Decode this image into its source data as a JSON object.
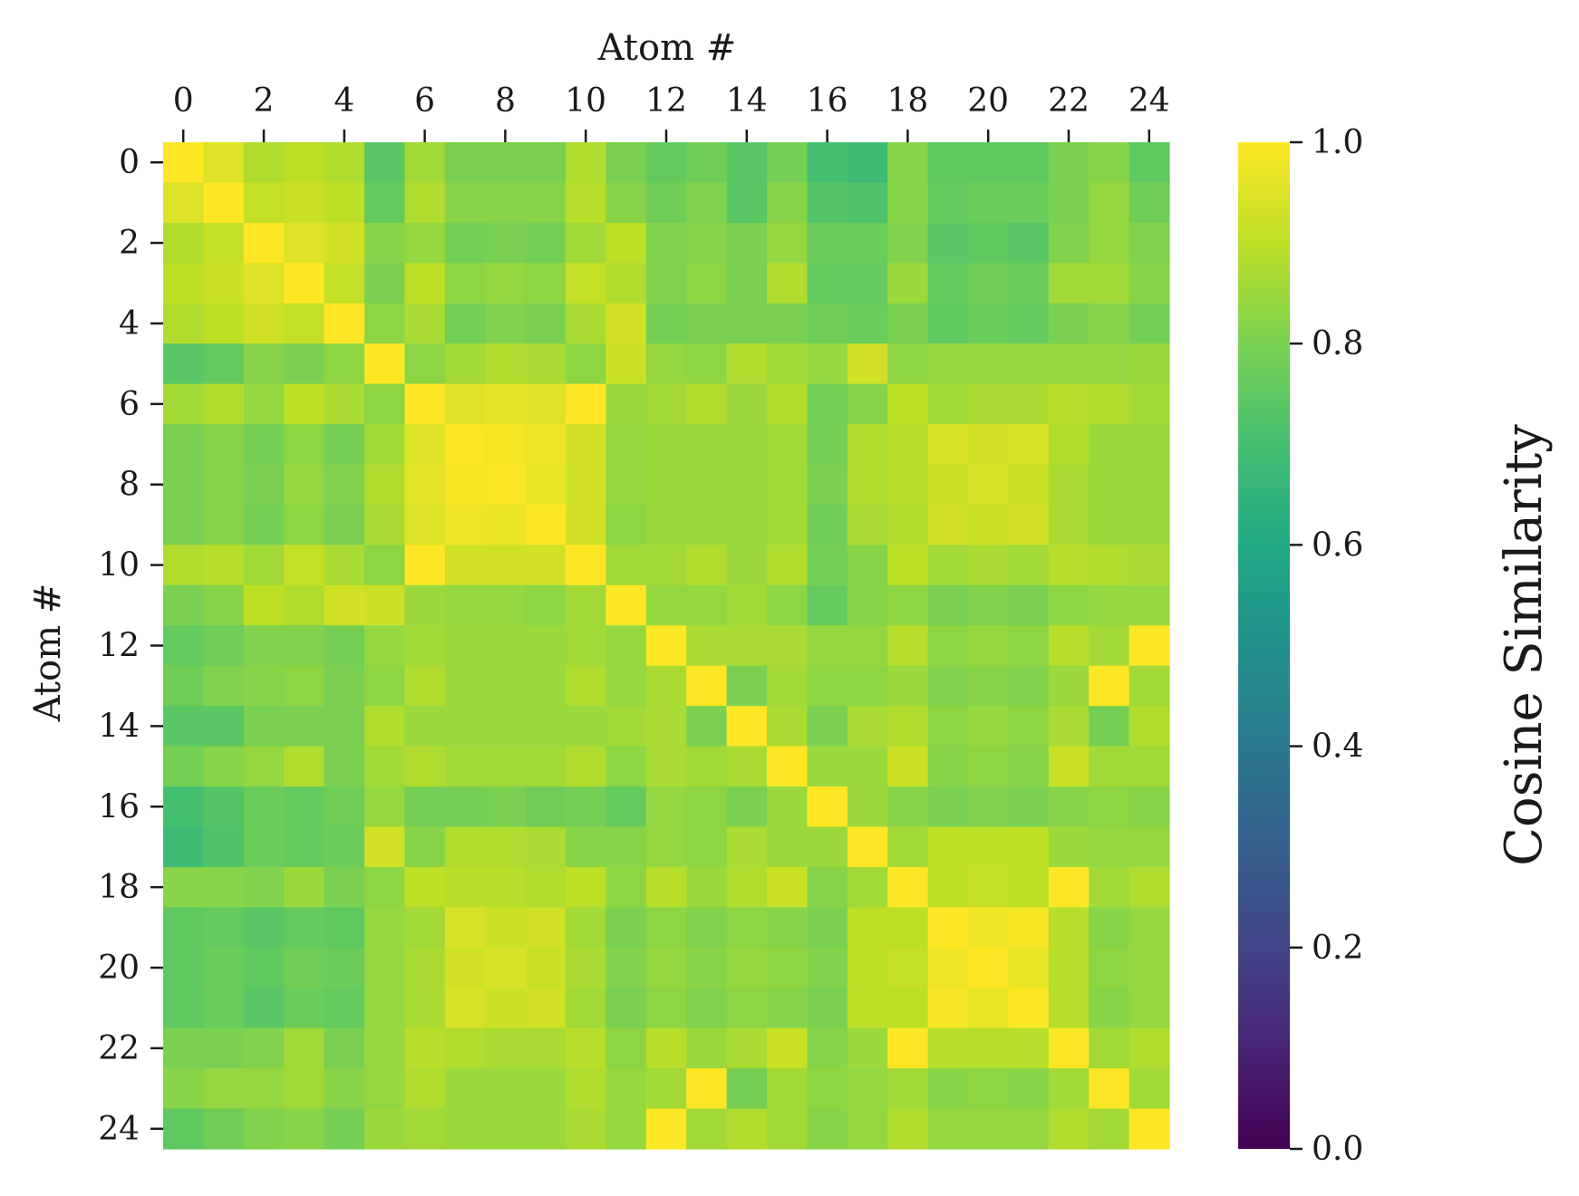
{
  "chart_data": {
    "type": "heatmap",
    "title": "",
    "xlabel": "Atom #",
    "ylabel": "Atom #",
    "xaxis_position": "top",
    "x_ticks": [
      "0",
      "2",
      "4",
      "6",
      "8",
      "10",
      "12",
      "14",
      "16",
      "18",
      "20",
      "22",
      "24"
    ],
    "y_ticks": [
      "0",
      "2",
      "4",
      "6",
      "8",
      "10",
      "12",
      "14",
      "16",
      "18",
      "20",
      "22",
      "24"
    ],
    "n": 25,
    "colormap": "viridis",
    "vmin": 0.0,
    "vmax": 1.0,
    "colorbar": {
      "label": "Cosine Similarity",
      "ticks": [
        "0.0",
        "0.2",
        "0.4",
        "0.6",
        "0.8",
        "1.0"
      ]
    },
    "matrix": [
      [
        1.0,
        0.95,
        0.88,
        0.9,
        0.88,
        0.74,
        0.86,
        0.8,
        0.8,
        0.8,
        0.88,
        0.8,
        0.76,
        0.78,
        0.74,
        0.79,
        0.7,
        0.68,
        0.82,
        0.75,
        0.75,
        0.75,
        0.8,
        0.82,
        0.75
      ],
      [
        0.95,
        1.0,
        0.91,
        0.92,
        0.9,
        0.76,
        0.88,
        0.82,
        0.82,
        0.82,
        0.89,
        0.82,
        0.78,
        0.81,
        0.74,
        0.82,
        0.73,
        0.72,
        0.82,
        0.76,
        0.77,
        0.77,
        0.8,
        0.84,
        0.78
      ],
      [
        0.88,
        0.91,
        1.0,
        0.95,
        0.93,
        0.82,
        0.84,
        0.79,
        0.8,
        0.79,
        0.86,
        0.9,
        0.81,
        0.82,
        0.8,
        0.84,
        0.77,
        0.77,
        0.81,
        0.74,
        0.75,
        0.74,
        0.81,
        0.84,
        0.81
      ],
      [
        0.9,
        0.92,
        0.95,
        1.0,
        0.91,
        0.8,
        0.9,
        0.83,
        0.84,
        0.83,
        0.91,
        0.88,
        0.81,
        0.83,
        0.8,
        0.88,
        0.76,
        0.76,
        0.85,
        0.76,
        0.78,
        0.77,
        0.86,
        0.86,
        0.82
      ],
      [
        0.88,
        0.9,
        0.93,
        0.91,
        1.0,
        0.83,
        0.87,
        0.79,
        0.81,
        0.8,
        0.87,
        0.93,
        0.79,
        0.8,
        0.8,
        0.8,
        0.78,
        0.77,
        0.8,
        0.75,
        0.77,
        0.76,
        0.8,
        0.82,
        0.79
      ],
      [
        0.74,
        0.76,
        0.82,
        0.8,
        0.83,
        1.0,
        0.83,
        0.86,
        0.88,
        0.87,
        0.83,
        0.92,
        0.84,
        0.83,
        0.88,
        0.86,
        0.84,
        0.93,
        0.83,
        0.84,
        0.84,
        0.84,
        0.84,
        0.84,
        0.85
      ],
      [
        0.86,
        0.88,
        0.84,
        0.9,
        0.87,
        0.83,
        1.0,
        0.95,
        0.96,
        0.95,
        1.0,
        0.85,
        0.86,
        0.88,
        0.85,
        0.88,
        0.79,
        0.82,
        0.9,
        0.86,
        0.87,
        0.87,
        0.89,
        0.88,
        0.86
      ],
      [
        0.8,
        0.82,
        0.79,
        0.83,
        0.79,
        0.86,
        0.95,
        1.0,
        0.99,
        0.98,
        0.93,
        0.84,
        0.85,
        0.85,
        0.85,
        0.86,
        0.79,
        0.88,
        0.89,
        0.94,
        0.93,
        0.94,
        0.88,
        0.85,
        0.85
      ],
      [
        0.8,
        0.82,
        0.8,
        0.84,
        0.81,
        0.88,
        0.96,
        0.99,
        1.0,
        0.97,
        0.93,
        0.84,
        0.85,
        0.85,
        0.85,
        0.86,
        0.8,
        0.88,
        0.89,
        0.92,
        0.94,
        0.92,
        0.87,
        0.85,
        0.85
      ],
      [
        0.8,
        0.82,
        0.79,
        0.83,
        0.8,
        0.87,
        0.95,
        0.98,
        0.97,
        1.0,
        0.93,
        0.83,
        0.85,
        0.85,
        0.85,
        0.86,
        0.78,
        0.87,
        0.88,
        0.93,
        0.92,
        0.93,
        0.87,
        0.85,
        0.85
      ],
      [
        0.88,
        0.89,
        0.86,
        0.91,
        0.87,
        0.83,
        1.0,
        0.93,
        0.93,
        0.93,
        1.0,
        0.86,
        0.86,
        0.88,
        0.85,
        0.88,
        0.79,
        0.82,
        0.9,
        0.86,
        0.87,
        0.86,
        0.89,
        0.88,
        0.87
      ],
      [
        0.8,
        0.82,
        0.9,
        0.88,
        0.93,
        0.92,
        0.85,
        0.84,
        0.84,
        0.83,
        0.86,
        1.0,
        0.84,
        0.84,
        0.86,
        0.83,
        0.76,
        0.82,
        0.83,
        0.8,
        0.81,
        0.8,
        0.83,
        0.84,
        0.84
      ],
      [
        0.76,
        0.78,
        0.81,
        0.81,
        0.79,
        0.84,
        0.86,
        0.85,
        0.85,
        0.85,
        0.86,
        0.84,
        1.0,
        0.87,
        0.87,
        0.87,
        0.84,
        0.84,
        0.89,
        0.83,
        0.84,
        0.83,
        0.89,
        0.86,
        1.0
      ],
      [
        0.78,
        0.81,
        0.82,
        0.83,
        0.8,
        0.83,
        0.88,
        0.85,
        0.85,
        0.85,
        0.88,
        0.84,
        0.87,
        1.0,
        0.8,
        0.86,
        0.83,
        0.83,
        0.85,
        0.81,
        0.82,
        0.81,
        0.85,
        1.0,
        0.86
      ],
      [
        0.74,
        0.74,
        0.8,
        0.8,
        0.8,
        0.88,
        0.85,
        0.85,
        0.85,
        0.85,
        0.85,
        0.86,
        0.87,
        0.8,
        1.0,
        0.87,
        0.8,
        0.87,
        0.88,
        0.83,
        0.84,
        0.83,
        0.87,
        0.79,
        0.88
      ],
      [
        0.79,
        0.82,
        0.84,
        0.88,
        0.8,
        0.86,
        0.88,
        0.86,
        0.86,
        0.86,
        0.88,
        0.83,
        0.87,
        0.86,
        0.87,
        1.0,
        0.85,
        0.85,
        0.92,
        0.82,
        0.83,
        0.82,
        0.92,
        0.86,
        0.86
      ],
      [
        0.7,
        0.73,
        0.77,
        0.76,
        0.78,
        0.84,
        0.79,
        0.79,
        0.8,
        0.78,
        0.79,
        0.76,
        0.84,
        0.83,
        0.8,
        0.85,
        1.0,
        0.85,
        0.82,
        0.8,
        0.81,
        0.8,
        0.82,
        0.83,
        0.82
      ],
      [
        0.68,
        0.72,
        0.77,
        0.76,
        0.77,
        0.93,
        0.82,
        0.88,
        0.88,
        0.87,
        0.82,
        0.82,
        0.84,
        0.83,
        0.87,
        0.85,
        0.85,
        1.0,
        0.86,
        0.9,
        0.9,
        0.9,
        0.85,
        0.84,
        0.84
      ],
      [
        0.82,
        0.82,
        0.81,
        0.85,
        0.8,
        0.83,
        0.9,
        0.89,
        0.89,
        0.88,
        0.9,
        0.83,
        0.89,
        0.85,
        0.88,
        0.92,
        0.82,
        0.86,
        1.0,
        0.9,
        0.91,
        0.9,
        1.0,
        0.86,
        0.88
      ],
      [
        0.75,
        0.76,
        0.74,
        0.76,
        0.75,
        0.84,
        0.86,
        0.94,
        0.92,
        0.93,
        0.86,
        0.8,
        0.83,
        0.81,
        0.83,
        0.82,
        0.8,
        0.9,
        0.9,
        1.0,
        0.98,
        0.99,
        0.89,
        0.82,
        0.84
      ],
      [
        0.75,
        0.77,
        0.75,
        0.78,
        0.77,
        0.84,
        0.87,
        0.93,
        0.94,
        0.92,
        0.87,
        0.81,
        0.84,
        0.82,
        0.84,
        0.83,
        0.81,
        0.9,
        0.91,
        0.98,
        1.0,
        0.97,
        0.89,
        0.83,
        0.84
      ],
      [
        0.75,
        0.77,
        0.74,
        0.77,
        0.76,
        0.84,
        0.87,
        0.94,
        0.92,
        0.93,
        0.86,
        0.8,
        0.83,
        0.81,
        0.83,
        0.82,
        0.8,
        0.9,
        0.9,
        0.99,
        0.97,
        1.0,
        0.89,
        0.82,
        0.84
      ],
      [
        0.8,
        0.8,
        0.81,
        0.86,
        0.8,
        0.84,
        0.89,
        0.88,
        0.87,
        0.87,
        0.89,
        0.83,
        0.89,
        0.85,
        0.87,
        0.92,
        0.82,
        0.85,
        1.0,
        0.89,
        0.89,
        0.89,
        1.0,
        0.86,
        0.88
      ],
      [
        0.82,
        0.84,
        0.84,
        0.86,
        0.82,
        0.84,
        0.88,
        0.85,
        0.85,
        0.85,
        0.88,
        0.84,
        0.86,
        1.0,
        0.79,
        0.86,
        0.83,
        0.84,
        0.86,
        0.82,
        0.83,
        0.82,
        0.86,
        1.0,
        0.86
      ],
      [
        0.75,
        0.78,
        0.81,
        0.82,
        0.79,
        0.85,
        0.86,
        0.85,
        0.85,
        0.85,
        0.87,
        0.84,
        1.0,
        0.86,
        0.88,
        0.86,
        0.82,
        0.84,
        0.88,
        0.84,
        0.84,
        0.84,
        0.88,
        0.86,
        1.0
      ]
    ]
  }
}
